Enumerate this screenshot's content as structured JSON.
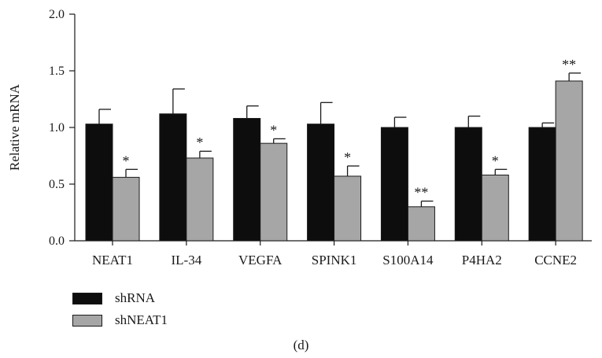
{
  "chart_data": {
    "type": "bar",
    "title": "",
    "xlabel": "",
    "ylabel": "Relative mRNA",
    "ylim": [
      0,
      2.0
    ],
    "yticks": [
      "0.0",
      "0.5",
      "1.0",
      "1.5",
      "2.0"
    ],
    "categories": [
      "NEAT1",
      "IL-34",
      "VEGFA",
      "SPINK1",
      "S100A14",
      "P4HA2",
      "CCNE2"
    ],
    "series": [
      {
        "name": "shRNA",
        "color": "#0d0d0d",
        "values": [
          1.03,
          1.12,
          1.08,
          1.03,
          1.0,
          1.0,
          1.0
        ],
        "errors": [
          0.13,
          0.22,
          0.11,
          0.19,
          0.09,
          0.1,
          0.04
        ]
      },
      {
        "name": "shNEAT1",
        "color": "#a6a6a6",
        "values": [
          0.56,
          0.73,
          0.86,
          0.57,
          0.3,
          0.58,
          1.41
        ],
        "errors": [
          0.07,
          0.06,
          0.04,
          0.09,
          0.05,
          0.05,
          0.07
        ],
        "significance": [
          "*",
          "*",
          "*",
          "*",
          "**",
          "*",
          "**"
        ]
      }
    ],
    "legend_position": "bottom-left",
    "grid": false,
    "panel_label": "(d)"
  }
}
